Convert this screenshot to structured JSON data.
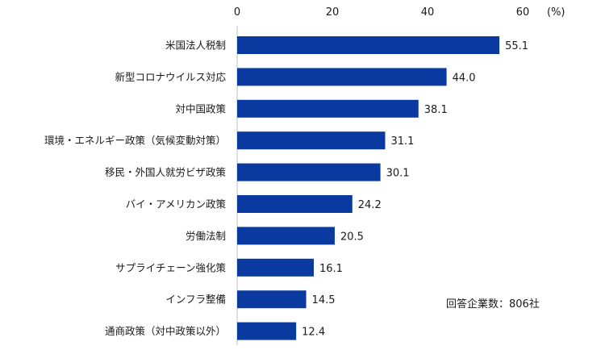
{
  "chart_data": {
    "type": "bar",
    "orientation": "horizontal",
    "categories": [
      "米国法人税制",
      "新型コロナウイルス対応",
      "対中国政策",
      "環境・エネルギー政策（気候変動対策）",
      "移民・外国人就労ビザ政策",
      "バイ・アメリカン政策",
      "労働法制",
      "サプライチェーン強化策",
      "インフラ整備",
      "通商政策（対中政策以外）"
    ],
    "values": [
      55.1,
      44.0,
      38.1,
      31.1,
      30.1,
      24.2,
      20.5,
      16.1,
      14.5,
      12.4
    ],
    "value_labels": [
      "55.1",
      "44.0",
      "38.1",
      "31.1",
      "30.1",
      "24.2",
      "20.5",
      "16.1",
      "14.5",
      "12.4"
    ],
    "xlim": [
      0,
      60
    ],
    "x_ticks": [
      0,
      20,
      40,
      60
    ],
    "x_tick_labels": [
      "0",
      "20",
      "40",
      "60"
    ],
    "unit_label": "(%)",
    "note": "回答企業数：806社",
    "bar_color": "#0a3aa0",
    "grid": false,
    "axis_position": "top"
  }
}
